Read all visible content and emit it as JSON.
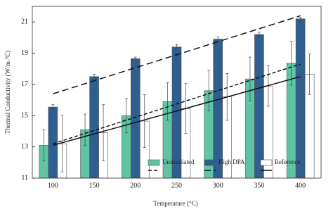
{
  "chart_data": {
    "type": "bar",
    "x_label": "Temperature (°C)",
    "y_label": "Thermal Conductivity (W/m-°C)",
    "categories": [
      "100",
      "150",
      "200",
      "250",
      "300",
      "350",
      "400"
    ],
    "ylim": [
      11,
      22
    ],
    "yticks": [
      11,
      13,
      15,
      17,
      19,
      21
    ],
    "legend": "lower right",
    "series": [
      {
        "name": "Unirradiated",
        "color": "#5ec4a4",
        "values": [
          13.1,
          14.1,
          15.0,
          15.9,
          16.6,
          17.35,
          18.35
        ],
        "errors": [
          1.0,
          1.0,
          1.1,
          1.2,
          1.3,
          1.4,
          1.4
        ],
        "trend": [
          13.2,
          18.3
        ],
        "trend_style": "dash"
      },
      {
        "name": "High DPA",
        "color": "#2f5f8f",
        "values": [
          15.55,
          17.5,
          18.65,
          19.4,
          19.9,
          20.2,
          21.2
        ],
        "errors": [
          0.15,
          0.15,
          0.1,
          0.15,
          0.15,
          0.15,
          0.1
        ],
        "trend": [
          16.4,
          21.4
        ],
        "trend_style": "long-dash"
      },
      {
        "name": "Reference",
        "color": "#ffffff",
        "values": [
          13.2,
          13.9,
          14.65,
          15.45,
          16.2,
          16.9,
          17.65
        ],
        "errors": [
          1.8,
          1.8,
          1.7,
          1.6,
          1.5,
          1.3,
          1.3
        ],
        "trend": [
          13.1,
          17.5
        ],
        "trend_style": "solid"
      }
    ]
  }
}
